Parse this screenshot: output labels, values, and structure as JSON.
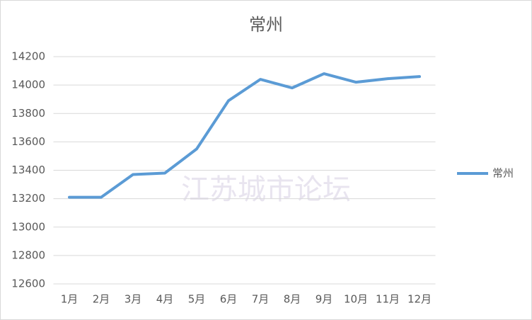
{
  "chart_data": {
    "type": "line",
    "title": "常州",
    "categories": [
      "1月",
      "2月",
      "3月",
      "4月",
      "5月",
      "6月",
      "7月",
      "8月",
      "9月",
      "10月",
      "11月",
      "12月"
    ],
    "series": [
      {
        "name": "常州",
        "color": "#5b9bd5",
        "values": [
          13210,
          13210,
          13370,
          13380,
          13550,
          13890,
          14040,
          13980,
          14080,
          14020,
          14045,
          14060
        ]
      }
    ],
    "ylim": [
      12600,
      14200
    ],
    "yticks": [
      12600,
      12800,
      13000,
      13200,
      13400,
      13600,
      13800,
      14000,
      14200
    ],
    "grid": true,
    "legend": "right",
    "watermark": "江苏城市论坛"
  }
}
